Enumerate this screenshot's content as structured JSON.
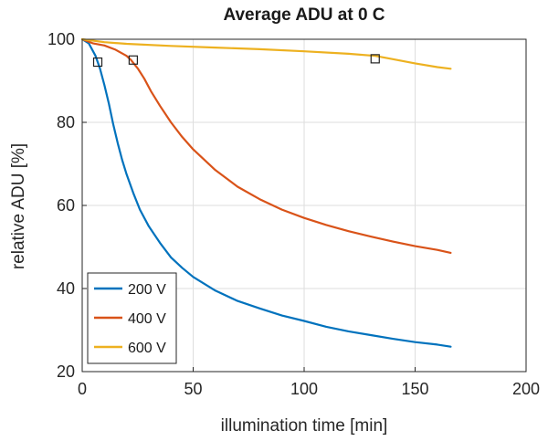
{
  "chart_data": {
    "type": "line",
    "title": "Average ADU at 0 C",
    "xlabel": "illumination time [min]",
    "ylabel": "relative ADU [%]",
    "xlim": [
      0,
      200
    ],
    "ylim": [
      20,
      100
    ],
    "xticks": [
      0,
      50,
      100,
      150,
      200
    ],
    "yticks": [
      20,
      40,
      60,
      80,
      100
    ],
    "grid": true,
    "legend_position": "bottom-left",
    "series": [
      {
        "name": "200 V",
        "color": "#0072BD",
        "x": [
          0,
          3,
          6,
          8,
          10,
          12,
          14,
          16,
          18,
          20,
          23,
          26,
          30,
          35,
          40,
          45,
          50,
          60,
          70,
          80,
          90,
          100,
          110,
          120,
          130,
          140,
          150,
          160,
          166
        ],
        "y": [
          100,
          99,
          96,
          93,
          89,
          84.5,
          79.5,
          75,
          71,
          67.5,
          63,
          59,
          55,
          51,
          47.5,
          45,
          42.8,
          39.5,
          37,
          35.2,
          33.5,
          32.2,
          30.8,
          29.7,
          28.8,
          27.9,
          27.1,
          26.5,
          26
        ]
      },
      {
        "name": "400 V",
        "color": "#D95319",
        "x": [
          0,
          5,
          10,
          15,
          20,
          22,
          25,
          28,
          31,
          35,
          40,
          45,
          50,
          60,
          70,
          80,
          90,
          100,
          110,
          120,
          130,
          140,
          150,
          160,
          166
        ],
        "y": [
          100,
          99,
          98.5,
          97.5,
          96,
          95,
          93,
          90.5,
          87.5,
          84,
          80,
          76.5,
          73.5,
          68.5,
          64.5,
          61.5,
          59,
          57,
          55.3,
          53.8,
          52.5,
          51.3,
          50.2,
          49.3,
          48.6
        ]
      },
      {
        "name": "600 V",
        "color": "#EDB120",
        "x": [
          0,
          10,
          20,
          40,
          60,
          80,
          100,
          120,
          132,
          140,
          150,
          160,
          166
        ],
        "y": [
          100,
          99.3,
          98.9,
          98.4,
          98,
          97.6,
          97.1,
          96.5,
          96,
          95.2,
          94.2,
          93.3,
          92.9
        ]
      }
    ],
    "markers": [
      {
        "x": 7,
        "y": 94.5
      },
      {
        "x": 23,
        "y": 95
      },
      {
        "x": 132,
        "y": 95.3
      }
    ]
  }
}
